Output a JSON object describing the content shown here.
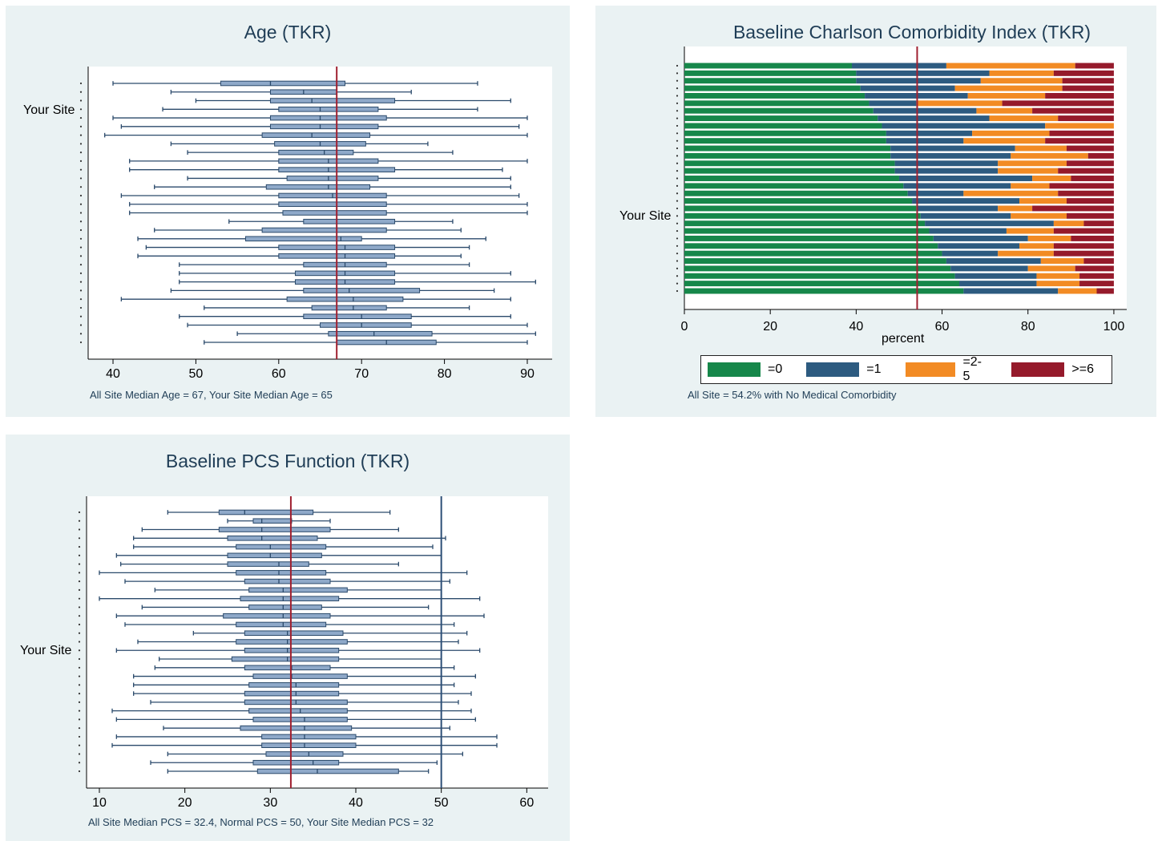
{
  "chart_data": [
    {
      "type": "boxplot",
      "title": "Age (TKR)",
      "ylabel": "Your Site",
      "note": "All Site Median Age = 67, Your Site Median Age = 65",
      "xlim": [
        37,
        93
      ],
      "xticks": [
        40,
        50,
        60,
        70,
        80,
        90
      ],
      "reference_lines": [
        {
          "value": 67,
          "color": "#a02030"
        }
      ],
      "box_color": "#8fa9c9",
      "line_color": "#2b4a6b",
      "boxes": [
        {
          "min": 40,
          "q1": 53,
          "median": 59,
          "q3": 68,
          "max": 84
        },
        {
          "min": 47,
          "q1": 59,
          "median": 63,
          "q3": 67,
          "max": 76
        },
        {
          "min": 50,
          "q1": 59,
          "median": 64,
          "q3": 74,
          "max": 88
        },
        {
          "min": 46,
          "q1": 60,
          "median": 65,
          "q3": 72,
          "max": 84
        },
        {
          "min": 40,
          "q1": 59,
          "median": 65,
          "q3": 73,
          "max": 90
        },
        {
          "min": 41,
          "q1": 59,
          "median": 65,
          "q3": 72,
          "max": 89
        },
        {
          "min": 39,
          "q1": 58,
          "median": 64,
          "q3": 71,
          "max": 90
        },
        {
          "min": 47,
          "q1": 59.5,
          "median": 65,
          "q3": 70.5,
          "max": 78
        },
        {
          "min": 49,
          "q1": 60,
          "median": 65.5,
          "q3": 69,
          "max": 81
        },
        {
          "min": 42,
          "q1": 60,
          "median": 66,
          "q3": 72,
          "max": 90
        },
        {
          "min": 42,
          "q1": 60,
          "median": 66,
          "q3": 74,
          "max": 87
        },
        {
          "min": 49,
          "q1": 61,
          "median": 66,
          "q3": 72,
          "max": 88
        },
        {
          "min": 45,
          "q1": 58.5,
          "median": 66,
          "q3": 71,
          "max": 88
        },
        {
          "min": 41,
          "q1": 60,
          "median": 66.5,
          "q3": 73,
          "max": 89
        },
        {
          "min": 42,
          "q1": 60,
          "median": 67,
          "q3": 73,
          "max": 90
        },
        {
          "min": 42,
          "q1": 60.5,
          "median": 67,
          "q3": 73,
          "max": 90
        },
        {
          "min": 54,
          "q1": 63,
          "median": 67,
          "q3": 74,
          "max": 81
        },
        {
          "min": 45,
          "q1": 58,
          "median": 67,
          "q3": 73,
          "max": 82
        },
        {
          "min": 43,
          "q1": 56,
          "median": 67.5,
          "q3": 70,
          "max": 85
        },
        {
          "min": 44,
          "q1": 60,
          "median": 68,
          "q3": 74,
          "max": 83
        },
        {
          "min": 43,
          "q1": 60,
          "median": 68,
          "q3": 74,
          "max": 82
        },
        {
          "min": 48,
          "q1": 63,
          "median": 68,
          "q3": 73,
          "max": 83
        },
        {
          "min": 48,
          "q1": 62,
          "median": 68,
          "q3": 74,
          "max": 88
        },
        {
          "min": 48,
          "q1": 62,
          "median": 68,
          "q3": 74,
          "max": 91
        },
        {
          "min": 47,
          "q1": 63,
          "median": 68.5,
          "q3": 77,
          "max": 86
        },
        {
          "min": 41,
          "q1": 61,
          "median": 69,
          "q3": 75,
          "max": 88
        },
        {
          "min": 51,
          "q1": 64,
          "median": 69,
          "q3": 73,
          "max": 83
        },
        {
          "min": 48,
          "q1": 63,
          "median": 70,
          "q3": 76,
          "max": 88
        },
        {
          "min": 49,
          "q1": 65,
          "median": 70,
          "q3": 76,
          "max": 90
        },
        {
          "min": 55,
          "q1": 66,
          "median": 71.5,
          "q3": 78.5,
          "max": 91
        },
        {
          "min": 51,
          "q1": 67,
          "median": 73,
          "q3": 79,
          "max": 90
        }
      ]
    },
    {
      "type": "stacked_bar",
      "title": "Baseline Charlson Comorbidity Index (TKR)",
      "xlabel": "percent",
      "ylabel": "Your Site",
      "note": "All Site = 54.2% with No Medical Comorbidity",
      "xlim": [
        0,
        103
      ],
      "xticks": [
        0,
        20,
        40,
        60,
        80,
        100
      ],
      "reference_lines": [
        {
          "value": 54.2,
          "color": "#a02030"
        }
      ],
      "series": [
        {
          "name": "=0",
          "color": "#16874a"
        },
        {
          "name": "=1",
          "color": "#2d5b80"
        },
        {
          "name": "=2-5",
          "color": "#f28b24"
        },
        {
          "name": ">=6",
          "color": "#951a2b"
        }
      ],
      "bars": [
        [
          39,
          22,
          30,
          9
        ],
        [
          40,
          31,
          15,
          14
        ],
        [
          40,
          29,
          19,
          12
        ],
        [
          41,
          22,
          25,
          12
        ],
        [
          42,
          24,
          18,
          16
        ],
        [
          43,
          11,
          20,
          26
        ],
        [
          44,
          24,
          13,
          19
        ],
        [
          45,
          26,
          16,
          13
        ],
        [
          46,
          38,
          16,
          0
        ],
        [
          47,
          20,
          18,
          15
        ],
        [
          47,
          18,
          19,
          16
        ],
        [
          48,
          29,
          12,
          11
        ],
        [
          48,
          28,
          18,
          6
        ],
        [
          49,
          24,
          16,
          11
        ],
        [
          49,
          24,
          14,
          13
        ],
        [
          50,
          31,
          9,
          10
        ],
        [
          51,
          25,
          9,
          15
        ],
        [
          52,
          13,
          22,
          13
        ],
        [
          53,
          25,
          11,
          11
        ],
        [
          54,
          19,
          8,
          19
        ],
        [
          55,
          21,
          13,
          11
        ],
        [
          56,
          30,
          7,
          7
        ],
        [
          57,
          18,
          11,
          14
        ],
        [
          58,
          22,
          10,
          10
        ],
        [
          59,
          19,
          8,
          14
        ],
        [
          60,
          13,
          13,
          14
        ],
        [
          61,
          22,
          10,
          7
        ],
        [
          62,
          18,
          11,
          9
        ],
        [
          63,
          19,
          10,
          8
        ],
        [
          64,
          18,
          10,
          8
        ],
        [
          65,
          22,
          9,
          4
        ]
      ]
    },
    {
      "type": "boxplot",
      "title": "Baseline PCS Function (TKR)",
      "ylabel": "Your Site",
      "note": "All Site Median PCS = 32.4, Normal PCS = 50, Your Site Median PCS = 32",
      "xlim": [
        8.5,
        62.5
      ],
      "xticks": [
        10,
        20,
        30,
        40,
        50,
        60
      ],
      "reference_lines": [
        {
          "value": 32.4,
          "color": "#a02030"
        },
        {
          "value": 50,
          "color": "#2d4f77"
        }
      ],
      "box_color": "#8fa9c9",
      "line_color": "#2b4a6b",
      "boxes": [
        {
          "min": 18,
          "q1": 24,
          "median": 27,
          "q3": 35,
          "max": 44
        },
        {
          "min": 25,
          "q1": 28,
          "median": 29,
          "q3": 32.5,
          "max": 37
        },
        {
          "min": 15,
          "q1": 24,
          "median": 29,
          "q3": 37,
          "max": 45
        },
        {
          "min": 14,
          "q1": 25,
          "median": 29,
          "q3": 35.5,
          "max": 50.5
        },
        {
          "min": 14,
          "q1": 26,
          "median": 30,
          "q3": 36.5,
          "max": 49
        },
        {
          "min": 12,
          "q1": 25,
          "median": 30,
          "q3": 36,
          "max": 50
        },
        {
          "min": 12.5,
          "q1": 25,
          "median": 31,
          "q3": 34.5,
          "max": 45
        },
        {
          "min": 10,
          "q1": 26,
          "median": 31,
          "q3": 36.5,
          "max": 53
        },
        {
          "min": 13,
          "q1": 27,
          "median": 31,
          "q3": 37,
          "max": 51
        },
        {
          "min": 16.5,
          "q1": 27.5,
          "median": 31.5,
          "q3": 39,
          "max": 50
        },
        {
          "min": 10,
          "q1": 26.5,
          "median": 31.5,
          "q3": 38,
          "max": 54.5
        },
        {
          "min": 15,
          "q1": 27.5,
          "median": 31.5,
          "q3": 36,
          "max": 48.5
        },
        {
          "min": 12,
          "q1": 24.5,
          "median": 31.5,
          "q3": 37,
          "max": 55
        },
        {
          "min": 13,
          "q1": 26,
          "median": 31.5,
          "q3": 36.5,
          "max": 51.5
        },
        {
          "min": 21,
          "q1": 27,
          "median": 32,
          "q3": 38.5,
          "max": 53
        },
        {
          "min": 14.5,
          "q1": 26,
          "median": 32,
          "q3": 39,
          "max": 52
        },
        {
          "min": 12,
          "q1": 27,
          "median": 32,
          "q3": 38,
          "max": 54.5
        },
        {
          "min": 17,
          "q1": 25.5,
          "median": 32,
          "q3": 38,
          "max": 50
        },
        {
          "min": 16.5,
          "q1": 27,
          "median": 32.5,
          "q3": 37,
          "max": 51.5
        },
        {
          "min": 14,
          "q1": 28,
          "median": 32.5,
          "q3": 39,
          "max": 54
        },
        {
          "min": 14,
          "q1": 27.5,
          "median": 33,
          "q3": 38,
          "max": 51.5
        },
        {
          "min": 14,
          "q1": 27,
          "median": 33,
          "q3": 38,
          "max": 53.5
        },
        {
          "min": 16,
          "q1": 27,
          "median": 33,
          "q3": 39,
          "max": 52
        },
        {
          "min": 11.5,
          "q1": 27.5,
          "median": 33.5,
          "q3": 39,
          "max": 53.5
        },
        {
          "min": 12,
          "q1": 28,
          "median": 34,
          "q3": 39,
          "max": 54
        },
        {
          "min": 17.5,
          "q1": 26.5,
          "median": 34,
          "q3": 39.5,
          "max": 51
        },
        {
          "min": 12,
          "q1": 29,
          "median": 34,
          "q3": 40,
          "max": 56.5
        },
        {
          "min": 11.5,
          "q1": 29,
          "median": 34,
          "q3": 40,
          "max": 56.5
        },
        {
          "min": 18,
          "q1": 29.5,
          "median": 34.5,
          "q3": 38.5,
          "max": 52.5
        },
        {
          "min": 16,
          "q1": 28,
          "median": 35,
          "q3": 38,
          "max": 49.5
        },
        {
          "min": 18,
          "q1": 28.5,
          "median": 35.5,
          "q3": 45,
          "max": 48.5
        }
      ]
    }
  ]
}
